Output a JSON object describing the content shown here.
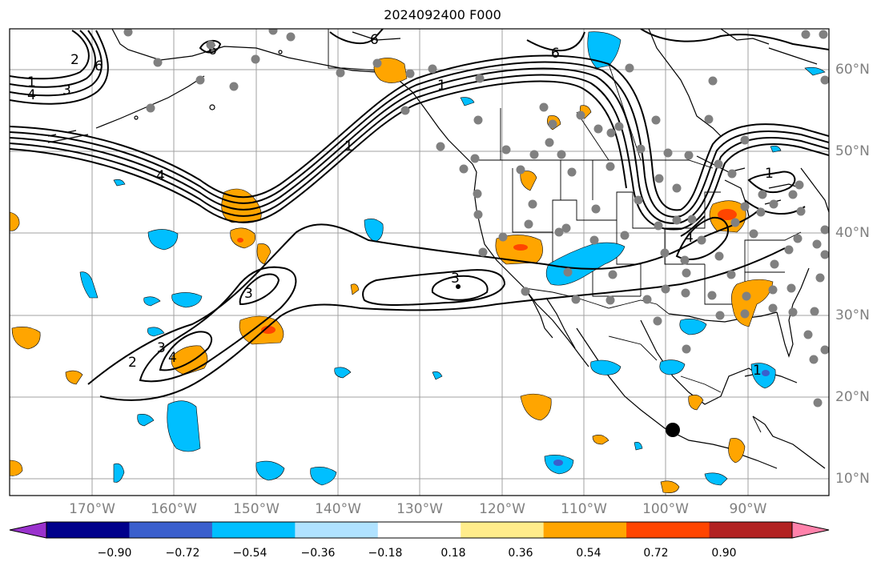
{
  "title": "2024092400 F000",
  "lon_labels": [
    "170°W",
    "160°W",
    "150°W",
    "140°W",
    "130°W",
    "120°W",
    "110°W",
    "100°W",
    "90°W"
  ],
  "lat_labels": [
    "60°N",
    "50°N",
    "40°N",
    "30°N",
    "20°N",
    "10°N"
  ],
  "contour_labels": [
    "1",
    "4",
    "3",
    "2",
    "1",
    "6",
    "6",
    "6",
    "6",
    "4",
    "1",
    "3",
    "3",
    "2",
    "3",
    "4",
    "1",
    "4",
    "1"
  ],
  "colorbar": {
    "ticks": [
      "−0.90",
      "−0.72",
      "−0.54",
      "−0.36",
      "−0.18",
      "0.18",
      "0.36",
      "0.54",
      "0.72",
      "0.90"
    ],
    "colors": [
      "#9a32cd",
      "#00008b",
      "#3a5fcd",
      "#00bfff",
      "#b0e2ff",
      "#ffffff",
      "#ffec8b",
      "#ffa500",
      "#ff4500",
      "#b22222",
      "#ff82ab"
    ]
  },
  "colors": {
    "frame": "#000000",
    "grid": "#a0a0a0",
    "positive_anomaly": "#ffa500",
    "strong_positive": "#ff4500",
    "negative_anomaly": "#00bfff",
    "strong_negative": "#3a5fcd",
    "station_marker": "#808080",
    "highlight_marker": "#000000"
  }
}
